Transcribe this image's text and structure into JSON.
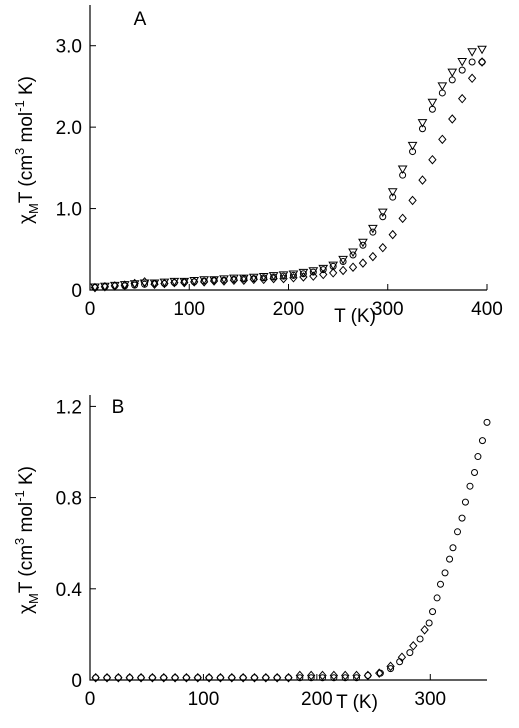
{
  "chart_data": [
    {
      "type": "scatter",
      "panel_label": "A",
      "xlabel": "T (K)",
      "ylabel_parts": [
        "χ",
        "M",
        "T (cm",
        "3",
        " mol",
        "-1",
        " K)"
      ],
      "xlim": [
        0,
        400
      ],
      "ylim": [
        0,
        3.5
      ],
      "xticks": [
        0,
        100,
        200,
        300,
        400
      ],
      "yticks": [
        0,
        {
          "value": 1,
          "label": "1.0"
        },
        {
          "value": 2,
          "label": "2.0"
        },
        {
          "value": 3,
          "label": "3.0"
        }
      ],
      "series": [
        {
          "marker": "triangle",
          "color": "#000000",
          "x": [
            5,
            15,
            25,
            35,
            45,
            55,
            65,
            75,
            85,
            95,
            105,
            115,
            125,
            135,
            145,
            155,
            165,
            175,
            185,
            195,
            205,
            215,
            225,
            235,
            245,
            255,
            265,
            275,
            285,
            295,
            305,
            315,
            325,
            335,
            345,
            355,
            365,
            375,
            385,
            395
          ],
          "values": [
            0.03,
            0.04,
            0.05,
            0.06,
            0.07,
            0.08,
            0.08,
            0.09,
            0.1,
            0.1,
            0.11,
            0.12,
            0.12,
            0.13,
            0.14,
            0.14,
            0.15,
            0.16,
            0.17,
            0.18,
            0.19,
            0.21,
            0.23,
            0.26,
            0.3,
            0.37,
            0.46,
            0.58,
            0.75,
            0.95,
            1.2,
            1.48,
            1.77,
            2.05,
            2.3,
            2.5,
            2.67,
            2.8,
            2.92,
            2.95
          ]
        },
        {
          "marker": "circle",
          "color": "#000000",
          "x": [
            5,
            15,
            25,
            35,
            45,
            55,
            65,
            75,
            85,
            95,
            105,
            115,
            125,
            135,
            145,
            155,
            165,
            175,
            185,
            195,
            205,
            215,
            225,
            235,
            245,
            255,
            265,
            275,
            285,
            295,
            305,
            315,
            325,
            335,
            345,
            355,
            365,
            375,
            385,
            395
          ],
          "values": [
            0.03,
            0.04,
            0.05,
            0.05,
            0.06,
            0.07,
            0.08,
            0.08,
            0.09,
            0.1,
            0.1,
            0.11,
            0.12,
            0.12,
            0.13,
            0.14,
            0.14,
            0.15,
            0.16,
            0.17,
            0.18,
            0.2,
            0.22,
            0.25,
            0.29,
            0.35,
            0.43,
            0.55,
            0.71,
            0.9,
            1.14,
            1.41,
            1.7,
            1.98,
            2.22,
            2.42,
            2.58,
            2.7,
            2.8,
            2.8
          ]
        },
        {
          "marker": "diamond",
          "color": "#000000",
          "x": [
            5,
            15,
            25,
            35,
            45,
            55,
            65,
            75,
            85,
            95,
            105,
            115,
            125,
            135,
            145,
            155,
            165,
            175,
            185,
            195,
            205,
            215,
            225,
            235,
            245,
            255,
            265,
            275,
            285,
            295,
            305,
            315,
            325,
            335,
            345,
            355,
            365,
            375,
            385,
            395
          ],
          "values": [
            0.03,
            0.04,
            0.05,
            0.06,
            0.08,
            0.1,
            0.07,
            0.08,
            0.09,
            0.09,
            0.1,
            0.1,
            0.11,
            0.11,
            0.12,
            0.12,
            0.13,
            0.13,
            0.14,
            0.14,
            0.15,
            0.16,
            0.17,
            0.19,
            0.21,
            0.24,
            0.28,
            0.33,
            0.41,
            0.52,
            0.68,
            0.88,
            1.1,
            1.35,
            1.6,
            1.85,
            2.1,
            2.35,
            2.6,
            2.8
          ]
        }
      ]
    },
    {
      "type": "scatter",
      "panel_label": "B",
      "xlabel": "T (K)",
      "ylabel_parts": [
        "χ",
        "M",
        "T (cm",
        "3",
        " mol",
        "-1",
        " K)"
      ],
      "xlim": [
        0,
        350
      ],
      "ylim": [
        0,
        1.25
      ],
      "xticks": [
        0,
        100,
        200,
        300
      ],
      "yticks": [
        0,
        0.4,
        0.8,
        1.2
      ],
      "series": [
        {
          "marker": "circle",
          "color": "#000000",
          "x": [
            5,
            15,
            25,
            35,
            45,
            55,
            65,
            75,
            85,
            95,
            105,
            115,
            125,
            135,
            145,
            155,
            165,
            175,
            185,
            195,
            205,
            215,
            225,
            235,
            245,
            256,
            265,
            273,
            282,
            291,
            299,
            302,
            306,
            309,
            313,
            317,
            320,
            324,
            328,
            331,
            335,
            339,
            342,
            346,
            350
          ],
          "values": [
            0.01,
            0.01,
            0.01,
            0.01,
            0.01,
            0.01,
            0.01,
            0.01,
            0.01,
            0.01,
            0.01,
            0.01,
            0.01,
            0.01,
            0.01,
            0.01,
            0.01,
            0.01,
            0.01,
            0.01,
            0.01,
            0.01,
            0.01,
            0.01,
            0.02,
            0.03,
            0.05,
            0.08,
            0.12,
            0.18,
            0.25,
            0.3,
            0.36,
            0.42,
            0.47,
            0.53,
            0.58,
            0.65,
            0.71,
            0.78,
            0.85,
            0.91,
            0.98,
            1.05,
            1.13
          ]
        },
        {
          "marker": "diamond",
          "color": "#000000",
          "x": [
            5,
            15,
            25,
            35,
            45,
            55,
            65,
            75,
            85,
            95,
            105,
            115,
            125,
            135,
            145,
            155,
            165,
            175,
            185,
            195,
            205,
            215,
            225,
            235,
            245,
            255,
            265,
            275,
            285,
            295
          ],
          "values": [
            0.01,
            0.01,
            0.01,
            0.01,
            0.01,
            0.01,
            0.01,
            0.01,
            0.01,
            0.01,
            0.01,
            0.01,
            0.01,
            0.01,
            0.01,
            0.01,
            0.01,
            0.01,
            0.02,
            0.02,
            0.02,
            0.02,
            0.02,
            0.02,
            0.02,
            0.03,
            0.06,
            0.1,
            0.15,
            0.22
          ]
        }
      ]
    }
  ]
}
